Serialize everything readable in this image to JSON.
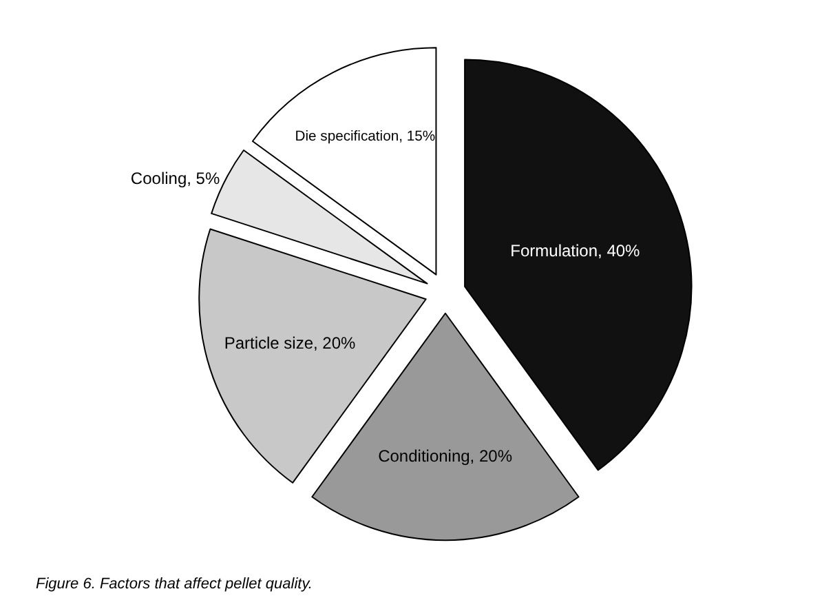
{
  "chart_data": {
    "type": "pie",
    "categories": [
      "Formulation",
      "Conditioning",
      "Particle size",
      "Cooling",
      "Die specification"
    ],
    "values": [
      40,
      20,
      20,
      5,
      15
    ],
    "colors": [
      "#111111",
      "#999999",
      "#c8c8c8",
      "#e6e6e6",
      "#ffffff"
    ],
    "value_labels": [
      "40%",
      "20%",
      "20%",
      "5%",
      "15%"
    ],
    "legend": false,
    "annotations": [
      "Figure 6. Factors that affect pellet quality."
    ]
  }
}
